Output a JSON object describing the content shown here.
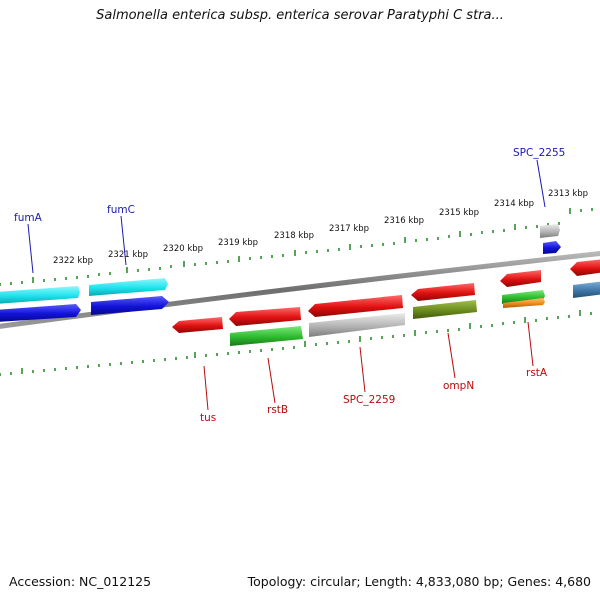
{
  "title": "Salmonella enterica subsp. enterica serovar Paratyphi C stra...",
  "footer": {
    "accession": "Accession: NC_012125",
    "summary": "Topology: circular; Length: 4,833,080 bp; Genes: 4,680"
  },
  "scale_labels": [
    "2322 kbp",
    "2321 kbp",
    "2320 kbp",
    "2319 kbp",
    "2318 kbp",
    "2317 kbp",
    "2316 kbp",
    "2315 kbp",
    "2314 kbp",
    "2313 kbp"
  ],
  "gene_labels": {
    "fumA": "fumA",
    "fumC": "fumC",
    "SPC_2255": "SPC_2255",
    "tus": "tus",
    "rstB": "rstB",
    "SPC_2259": "SPC_2259",
    "ompN": "ompN",
    "rstA": "rstA"
  },
  "colors": {
    "cyan": "#1ee3ee",
    "blue": "#1212d8",
    "red": "#e01010",
    "green": "#2dbb2d",
    "gray": "#b4b4b4",
    "olive": "#6b8c1e",
    "steel": "#3f78a8",
    "orange": "#f08a1a",
    "backbone": "#7a7a7a",
    "tick": "#2f8a2f",
    "label_blue": "#1a1ab4",
    "label_red": "#b80c0c"
  }
}
